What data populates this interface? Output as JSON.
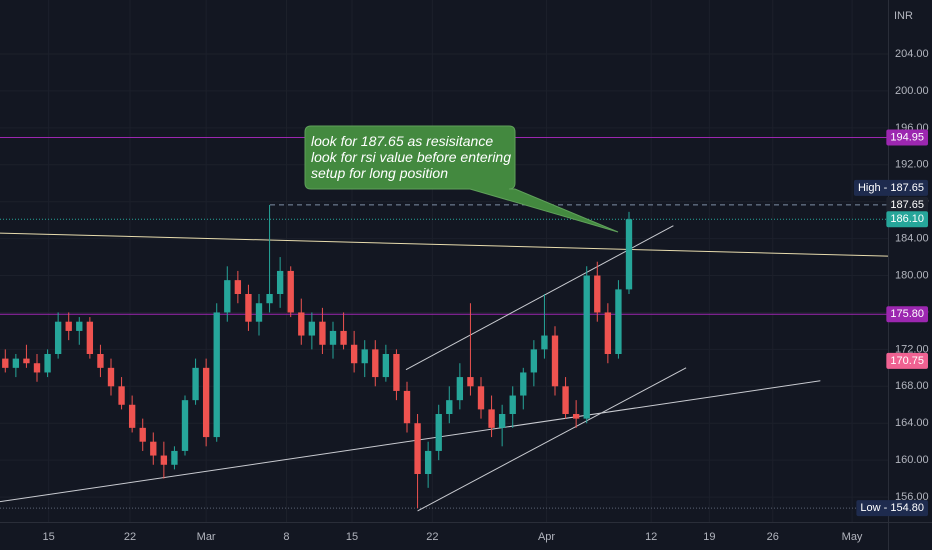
{
  "chart_data": {
    "type": "candlestick",
    "currency": "INR",
    "x": [
      0,
      1,
      2,
      3,
      4,
      5,
      6,
      7,
      8,
      9,
      10,
      11,
      12,
      13,
      14,
      15,
      16,
      17,
      18,
      19,
      20,
      21,
      22,
      23,
      24,
      25,
      26,
      27,
      28,
      29,
      30,
      31,
      32,
      33,
      34,
      35,
      36,
      37,
      38,
      39,
      40,
      41,
      42,
      43,
      44,
      45,
      46,
      47,
      48,
      49,
      50,
      51,
      52,
      53,
      54,
      55,
      56,
      57,
      58,
      59
    ],
    "open": [
      171,
      170,
      171,
      170.5,
      169.5,
      171.5,
      175,
      174,
      175,
      171.5,
      170,
      168,
      166,
      163.5,
      162,
      160.5,
      159.5,
      161,
      166.5,
      170,
      162.5,
      176,
      179.5,
      178,
      175,
      177,
      178,
      180.5,
      176,
      173.5,
      175,
      172.5,
      174,
      172.5,
      170.5,
      172,
      169,
      171.5,
      167.5,
      164,
      158.5,
      161,
      165,
      166.5,
      169,
      168,
      165.5,
      163.5,
      165,
      167,
      169.5,
      172,
      173.5,
      168,
      165,
      164.5,
      180,
      176,
      171.5,
      178.5
    ],
    "high": [
      172,
      171.5,
      172.5,
      171.5,
      172,
      176,
      176,
      175.5,
      175.5,
      172.5,
      171,
      169,
      167,
      164.5,
      163,
      162,
      161.5,
      167,
      171,
      171,
      177,
      181,
      180.5,
      179,
      178,
      187.65,
      182,
      181,
      177.5,
      176,
      176.5,
      175,
      176,
      174,
      173,
      173,
      172.5,
      172,
      168.5,
      165,
      162,
      166,
      168,
      170.5,
      177,
      169,
      167,
      166,
      168,
      170,
      173,
      178,
      174.5,
      169,
      166.5,
      181,
      181.5,
      177,
      179.5,
      186.9
    ],
    "low": [
      169.5,
      169,
      170,
      168.5,
      169,
      171,
      173,
      172.5,
      171,
      169,
      167,
      165.5,
      163,
      161,
      159.5,
      158,
      159,
      160.5,
      166,
      161.5,
      162,
      175,
      177,
      174,
      173.5,
      176,
      176.5,
      175.5,
      172.5,
      172,
      171.5,
      171,
      172,
      169.5,
      169,
      168,
      168.5,
      166.5,
      163,
      154.8,
      157,
      160,
      164,
      165.5,
      167,
      164.5,
      162.5,
      161.5,
      163.5,
      165.5,
      168,
      171,
      167,
      164.5,
      163.5,
      164,
      175,
      170.5,
      171,
      178
    ],
    "close": [
      170,
      171,
      170.5,
      169.5,
      171.5,
      175,
      174,
      175,
      171.5,
      170,
      168,
      166,
      163.5,
      162,
      160.5,
      159.5,
      161,
      166.5,
      170,
      162.5,
      176,
      179.5,
      178,
      175,
      177,
      178,
      180.5,
      176,
      173.5,
      175,
      172.5,
      174,
      172.5,
      170.5,
      172,
      169,
      171.5,
      167.5,
      164,
      158.5,
      161,
      165,
      166.5,
      169,
      168,
      165.5,
      163.5,
      165,
      167,
      169.5,
      172,
      173.5,
      168,
      165,
      164.5,
      180,
      176,
      171.5,
      178.5,
      186.1
    ],
    "up_color": "#26a69a",
    "down_color": "#ef5350",
    "xlim": [
      -0.5,
      83.5
    ],
    "ylim": [
      153.3,
      209.85
    ],
    "xticks": [
      {
        "value": 4.1,
        "label": "15"
      },
      {
        "value": 11.8,
        "label": "22"
      },
      {
        "value": 19,
        "label": "Mar"
      },
      {
        "value": 26.6,
        "label": "8"
      },
      {
        "value": 32.8,
        "label": "15"
      },
      {
        "value": 40.4,
        "label": "22"
      },
      {
        "value": 51.2,
        "label": "Apr"
      },
      {
        "value": 61.1,
        "label": "12"
      },
      {
        "value": 66.6,
        "label": "19"
      },
      {
        "value": 72.6,
        "label": "26"
      },
      {
        "value": 80.1,
        "label": "May"
      }
    ],
    "yticks": [
      {
        "value": 156,
        "label": "156.00"
      },
      {
        "value": 160,
        "label": "160.00"
      },
      {
        "value": 164,
        "label": "164.00"
      },
      {
        "value": 168,
        "label": "168.00"
      },
      {
        "value": 172,
        "label": "172.00"
      },
      {
        "value": 176,
        "label": "176.00"
      },
      {
        "value": 180,
        "label": "180.00"
      },
      {
        "value": 184,
        "label": "184.00"
      },
      {
        "value": 188,
        "label": "188.00"
      },
      {
        "value": 192,
        "label": "192.00"
      },
      {
        "value": 196,
        "label": "196.00"
      },
      {
        "value": 200,
        "label": "200.00"
      },
      {
        "value": 204,
        "label": "204.00"
      }
    ],
    "grid": true,
    "levels": [
      {
        "value": 194.95,
        "label": "194.95",
        "color": "#9c27b0",
        "line": "solid"
      },
      {
        "value": 187.65,
        "label": "High - 187.65",
        "color": "#1e2b4e",
        "line": "none"
      },
      {
        "value": 187.65,
        "label": "187.65",
        "color": "#1e222d",
        "line": "dashed"
      },
      {
        "value": 186.1,
        "label": "186.10",
        "color": "#26a69a",
        "line": "dotted"
      },
      {
        "value": 175.8,
        "label": "175.80",
        "color": "#9c27b0",
        "line": "solid"
      },
      {
        "value": 170.75,
        "label": "170.75",
        "color": "#f06292",
        "line": "none"
      },
      {
        "value": 154.8,
        "label": "Low - 154.80",
        "color": "#1e2b4e",
        "line": "dotted"
      }
    ],
    "trendlines": [
      {
        "x": [
          -0.5,
          83.5
        ],
        "y": [
          184.6,
          182.1
        ],
        "color": "#e8dcae"
      },
      {
        "x": [
          -0.5,
          77.1
        ],
        "y": [
          155.5,
          168.6
        ],
        "color": "#c9cbd1"
      },
      {
        "x": [
          37.9,
          63.2
        ],
        "y": [
          169.8,
          185.4
        ],
        "color": "#c9cbd1"
      },
      {
        "x": [
          39.0,
          64.4
        ],
        "y": [
          154.5,
          170.0
        ],
        "color": "#c9cbd1"
      }
    ],
    "annotation": {
      "lines": [
        "look for 187.65 as resisitance",
        "look for rsi value before entering",
        "setup for long position"
      ],
      "color": "#43893f"
    }
  }
}
